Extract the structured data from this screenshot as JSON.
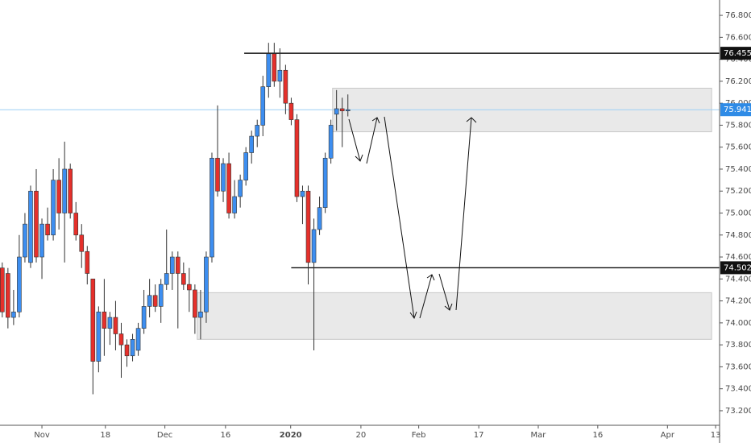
{
  "chart_data": {
    "type": "candlestick",
    "up_color": "#3d8ef0",
    "down_color": "#e5302b",
    "open": [
      74.5,
      74.45,
      74.05,
      74.1,
      74.6,
      74.55,
      75.2,
      74.6,
      74.9,
      74.8,
      75.3,
      75.0,
      75.4,
      75.0,
      74.8,
      74.65,
      74.4,
      73.65,
      74.1,
      73.95,
      74.05,
      73.9,
      73.8,
      73.7,
      73.75,
      73.95,
      74.15,
      74.25,
      74.15,
      74.35,
      74.45,
      74.6,
      74.45,
      74.35,
      74.3,
      74.05,
      74.1,
      74.6,
      75.5,
      75.2,
      75.45,
      75.0,
      75.15,
      75.3,
      75.55,
      75.7,
      75.8,
      76.15,
      76.45,
      76.2,
      76.3,
      76.0,
      75.85,
      75.15,
      75.2,
      74.55,
      74.85,
      75.05,
      75.5,
      75.9,
      75.95,
      75.93
    ],
    "high": [
      74.55,
      74.5,
      74.3,
      74.8,
      75.0,
      75.25,
      75.4,
      74.95,
      75.05,
      75.4,
      75.5,
      75.65,
      75.45,
      75.1,
      74.9,
      74.7,
      74.4,
      74.15,
      74.4,
      74.1,
      74.2,
      74.0,
      73.85,
      73.9,
      74.0,
      74.3,
      74.4,
      74.35,
      74.4,
      74.85,
      74.65,
      74.65,
      74.55,
      74.5,
      74.35,
      74.3,
      74.65,
      75.55,
      75.98,
      75.5,
      75.55,
      75.3,
      75.35,
      75.6,
      75.75,
      75.85,
      76.25,
      76.55,
      76.55,
      76.5,
      76.35,
      76.05,
      75.9,
      75.25,
      75.25,
      74.95,
      75.15,
      75.55,
      75.85,
      76.12,
      76.05,
      76.08
    ],
    "low": [
      74.05,
      73.95,
      73.98,
      74.05,
      74.55,
      74.5,
      74.55,
      74.4,
      74.75,
      74.75,
      74.85,
      74.55,
      74.95,
      74.75,
      74.5,
      74.35,
      73.35,
      73.55,
      73.7,
      73.8,
      73.75,
      73.5,
      73.6,
      73.65,
      73.7,
      73.9,
      74.05,
      74.1,
      74.0,
      74.3,
      74.3,
      73.95,
      74.3,
      74.1,
      73.9,
      73.85,
      74.0,
      74.55,
      75.15,
      75.1,
      74.95,
      74.95,
      75.05,
      75.25,
      75.45,
      75.6,
      75.7,
      76.05,
      76.15,
      76.05,
      75.9,
      75.8,
      75.1,
      74.9,
      74.35,
      73.75,
      74.8,
      75.0,
      75.45,
      75.75,
      75.6,
      75.88
    ],
    "close": [
      74.1,
      74.05,
      74.1,
      74.6,
      74.9,
      75.2,
      74.6,
      74.9,
      74.8,
      75.3,
      75.0,
      75.4,
      75.0,
      74.8,
      74.65,
      74.45,
      73.65,
      74.1,
      73.95,
      74.05,
      73.9,
      73.8,
      73.7,
      73.85,
      73.95,
      74.15,
      74.25,
      74.15,
      74.35,
      74.45,
      74.6,
      74.45,
      74.35,
      74.3,
      74.05,
      74.1,
      74.6,
      75.5,
      75.2,
      75.45,
      75.0,
      75.15,
      75.3,
      75.55,
      75.7,
      75.8,
      76.15,
      76.45,
      76.2,
      76.3,
      76.0,
      75.85,
      75.15,
      75.2,
      74.55,
      74.85,
      75.05,
      75.5,
      75.8,
      75.95,
      75.93,
      75.941
    ],
    "xlim": [
      -0.4,
      126.6
    ],
    "xticks": [
      {
        "value": 7,
        "label": "Nov"
      },
      {
        "value": 18.2,
        "label": "18"
      },
      {
        "value": 28.7,
        "label": "Dec"
      },
      {
        "value": 39.4,
        "label": "16"
      },
      {
        "value": 50.9,
        "label": "2020"
      },
      {
        "value": 63.3,
        "label": "20"
      },
      {
        "value": 73.5,
        "label": "Feb"
      },
      {
        "value": 84.1,
        "label": "17"
      },
      {
        "value": 94.6,
        "label": "Mar"
      },
      {
        "value": 105.1,
        "label": "16"
      },
      {
        "value": 117.4,
        "label": "Apr"
      },
      {
        "value": 125.9,
        "label": "13"
      }
    ],
    "ylim": [
      73.0676,
      76.9399
    ],
    "yticks": [
      {
        "value": 76.8,
        "label": "76.800"
      },
      {
        "value": 76.6,
        "label": "76.600"
      },
      {
        "value": 76.4,
        "label": "76.400"
      },
      {
        "value": 76.2,
        "label": "76.200"
      },
      {
        "value": 76.0,
        "label": "76.000"
      },
      {
        "value": 75.8,
        "label": "75.800"
      },
      {
        "value": 75.6,
        "label": "75.600"
      },
      {
        "value": 75.4,
        "label": "75.400"
      },
      {
        "value": 75.2,
        "label": "75.200"
      },
      {
        "value": 75.0,
        "label": "75.000"
      },
      {
        "value": 74.8,
        "label": "74.800"
      },
      {
        "value": 74.6,
        "label": "74.600"
      },
      {
        "value": 74.4,
        "label": "74.400"
      },
      {
        "value": 74.2,
        "label": "74.200"
      },
      {
        "value": 74.0,
        "label": "74.000"
      },
      {
        "value": 73.8,
        "label": "73.800"
      },
      {
        "value": 73.6,
        "label": "73.600"
      },
      {
        "value": 73.4,
        "label": "73.400"
      },
      {
        "value": 73.2,
        "label": "73.200"
      }
    ],
    "levels": [
      {
        "value": 76.455,
        "label": "76.455",
        "from": 42.7
      },
      {
        "value": 74.502,
        "label": "74.502",
        "from": 51
      }
    ],
    "last_price": {
      "value": 75.941,
      "label": "75.941"
    },
    "zones": [
      {
        "top": 76.137,
        "bottom": 75.74,
        "from": 58.3,
        "to": 125.2
      },
      {
        "top": 74.275,
        "bottom": 73.85,
        "from": 34.4,
        "to": 125.2
      }
    ]
  }
}
